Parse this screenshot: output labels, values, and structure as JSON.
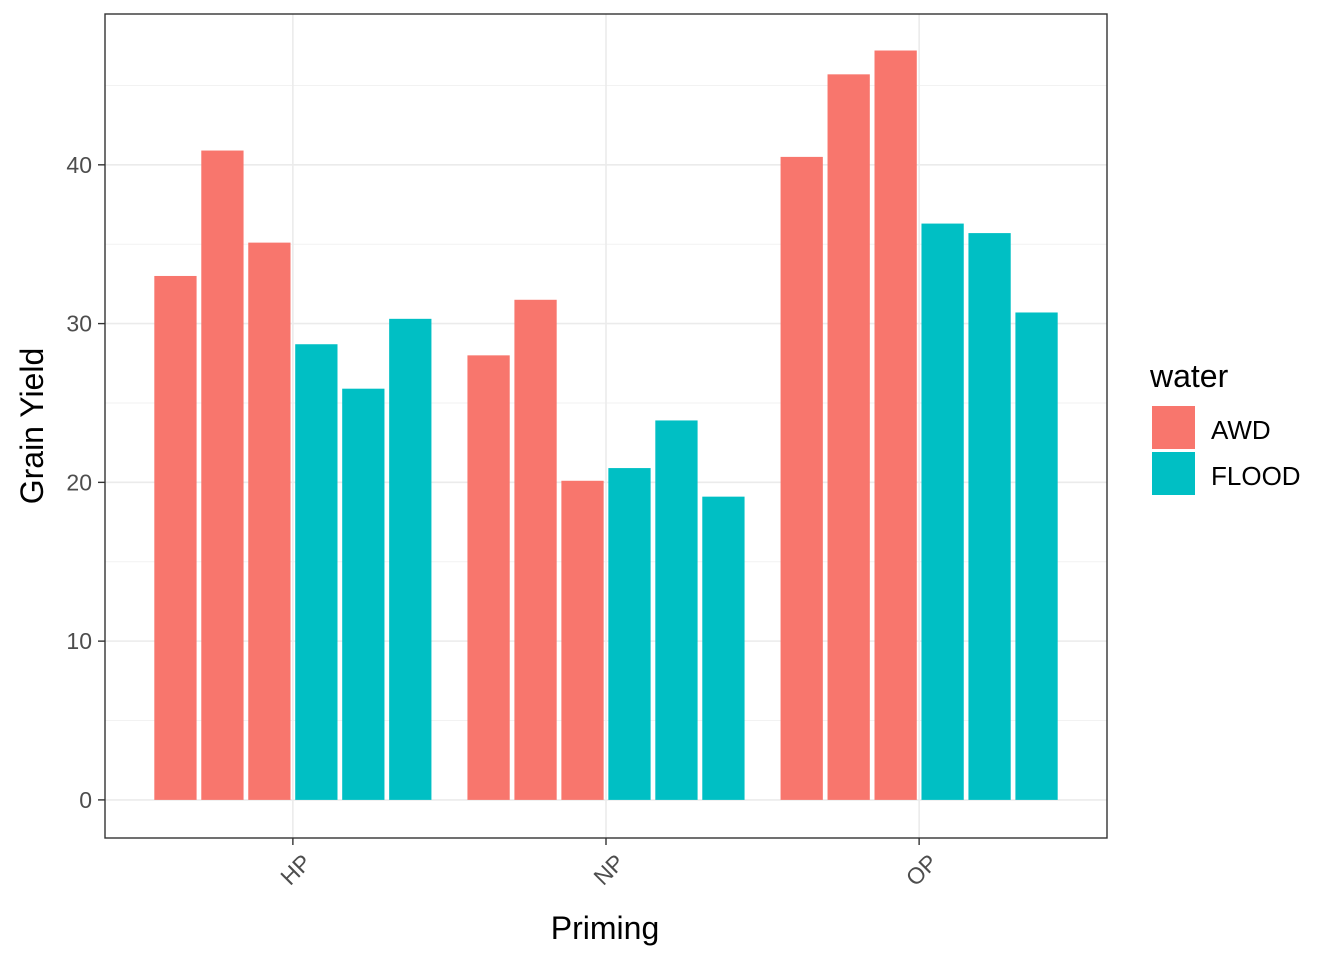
{
  "chart_data": {
    "type": "bar",
    "xlabel": "Priming",
    "ylabel": "Grain Yield",
    "ylim": [
      -2.4,
      49.5
    ],
    "yticks": [
      0,
      10,
      20,
      30,
      40
    ],
    "categories": [
      "HP",
      "NP",
      "OP"
    ],
    "grid": true,
    "legend": {
      "title": "water",
      "position": "right",
      "entries": [
        {
          "label": "AWD",
          "color": "#F8766D"
        },
        {
          "label": "FLOOD",
          "color": "#00BFC4"
        }
      ]
    },
    "bars": [
      {
        "category": "HP",
        "group": "AWD",
        "value": 33.0
      },
      {
        "category": "HP",
        "group": "AWD",
        "value": 40.9
      },
      {
        "category": "HP",
        "group": "AWD",
        "value": 35.1
      },
      {
        "category": "HP",
        "group": "FLOOD",
        "value": 28.7
      },
      {
        "category": "HP",
        "group": "FLOOD",
        "value": 25.9
      },
      {
        "category": "HP",
        "group": "FLOOD",
        "value": 30.3
      },
      {
        "category": "NP",
        "group": "AWD",
        "value": 28.0
      },
      {
        "category": "NP",
        "group": "AWD",
        "value": 31.5
      },
      {
        "category": "NP",
        "group": "AWD",
        "value": 20.1
      },
      {
        "category": "NP",
        "group": "FLOOD",
        "value": 20.9
      },
      {
        "category": "NP",
        "group": "FLOOD",
        "value": 23.9
      },
      {
        "category": "NP",
        "group": "FLOOD",
        "value": 19.1
      },
      {
        "category": "OP",
        "group": "AWD",
        "value": 40.5
      },
      {
        "category": "OP",
        "group": "AWD",
        "value": 45.7
      },
      {
        "category": "OP",
        "group": "AWD",
        "value": 47.2
      },
      {
        "category": "OP",
        "group": "FLOOD",
        "value": 36.3
      },
      {
        "category": "OP",
        "group": "FLOOD",
        "value": 35.7
      },
      {
        "category": "OP",
        "group": "FLOOD",
        "value": 30.7
      }
    ]
  }
}
